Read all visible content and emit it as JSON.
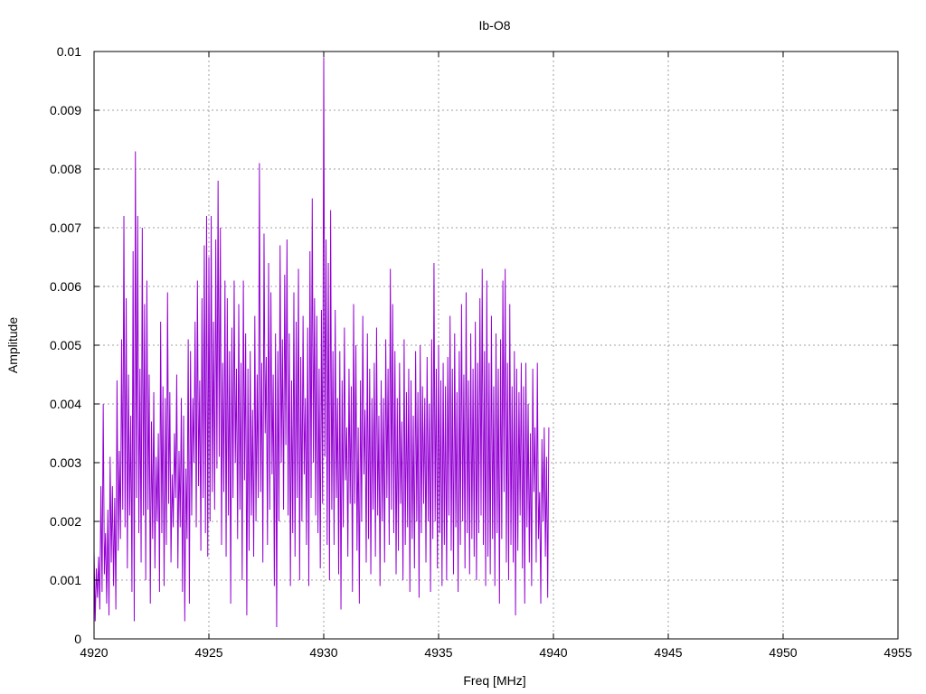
{
  "chart_data": {
    "type": "line",
    "title": "Ib-O8",
    "xlabel": "Freq [MHz]",
    "ylabel": "Amplitude",
    "xlim": [
      4920,
      4955
    ],
    "ylim": [
      0,
      0.01
    ],
    "x_ticks": [
      "4920",
      "4925",
      "4930",
      "4935",
      "4940",
      "4945",
      "4950",
      "4955"
    ],
    "y_ticks": [
      "0",
      "0.001",
      "0.002",
      "0.003",
      "0.004",
      "0.005",
      "0.006",
      "0.007",
      "0.008",
      "0.009",
      "0.01"
    ],
    "grid": true,
    "legend": "none",
    "line_color": "#9400d3",
    "series": [
      {
        "x_start": 4920,
        "x_step": 0.05,
        "values": [
          0.0015,
          0.0003,
          0.0012,
          0.0007,
          0.0014,
          0.0005,
          0.0026,
          0.0008,
          0.004,
          0.0011,
          0.0018,
          0.0006,
          0.0022,
          0.0004,
          0.0031,
          0.0013,
          0.0026,
          0.0009,
          0.0024,
          0.0005,
          0.0044,
          0.0015,
          0.0032,
          0.0017,
          0.0051,
          0.0022,
          0.0072,
          0.0019,
          0.0058,
          0.0012,
          0.0045,
          0.0021,
          0.0038,
          0.0008,
          0.0066,
          0.0003,
          0.0083,
          0.0024,
          0.0072,
          0.0018,
          0.0046,
          0.0013,
          0.007,
          0.0021,
          0.0057,
          0.001,
          0.0061,
          0.0022,
          0.0045,
          0.0006,
          0.0037,
          0.0017,
          0.0042,
          0.0012,
          0.0031,
          0.002,
          0.0035,
          0.0008,
          0.0054,
          0.0018,
          0.0043,
          0.0009,
          0.0041,
          0.0016,
          0.0059,
          0.0023,
          0.0042,
          0.0013,
          0.0028,
          0.0019,
          0.0035,
          0.0024,
          0.0045,
          0.0012,
          0.0032,
          0.0019,
          0.0041,
          0.0008,
          0.0038,
          0.0003,
          0.0029,
          0.0017,
          0.0051,
          0.0006,
          0.0049,
          0.0021,
          0.0041,
          0.003,
          0.0054,
          0.0019,
          0.0061,
          0.0026,
          0.0044,
          0.0015,
          0.0058,
          0.0024,
          0.0067,
          0.0018,
          0.0072,
          0.0014,
          0.0065,
          0.002,
          0.0072,
          0.0025,
          0.0054,
          0.0022,
          0.0068,
          0.0029,
          0.0078,
          0.0031,
          0.007,
          0.0016,
          0.0047,
          0.0025,
          0.0061,
          0.0014,
          0.0058,
          0.0021,
          0.0049,
          0.0006,
          0.0053,
          0.0024,
          0.0061,
          0.003,
          0.0046,
          0.0017,
          0.0057,
          0.0022,
          0.0047,
          0.001,
          0.0061,
          0.0027,
          0.0052,
          0.0004,
          0.0046,
          0.0015,
          0.0049,
          0.0021,
          0.0039,
          0.0014,
          0.0055,
          0.002,
          0.0045,
          0.0024,
          0.0081,
          0.0025,
          0.0047,
          0.0013,
          0.0069,
          0.0035,
          0.0048,
          0.0016,
          0.0064,
          0.0022,
          0.0059,
          0.0028,
          0.0045,
          0.0009,
          0.0052,
          0.0002,
          0.0049,
          0.002,
          0.0067,
          0.003,
          0.0051,
          0.0022,
          0.0062,
          0.0033,
          0.0068,
          0.0021,
          0.0052,
          0.0009,
          0.0044,
          0.0018,
          0.0059,
          0.0014,
          0.0054,
          0.0024,
          0.0063,
          0.001,
          0.0048,
          0.002,
          0.0055,
          0.0028,
          0.0041,
          0.0016,
          0.0053,
          0.0009,
          0.0066,
          0.0024,
          0.0075,
          0.003,
          0.0058,
          0.0021,
          0.0055,
          0.0018,
          0.0046,
          0.0012,
          0.0056,
          0.0023,
          0.0099,
          0.0031,
          0.0068,
          0.0016,
          0.0064,
          0.001,
          0.0073,
          0.0022,
          0.0049,
          0.0016,
          0.0056,
          0.0024,
          0.0041,
          0.0011,
          0.0049,
          0.0005,
          0.0044,
          0.0019,
          0.0053,
          0.0027,
          0.0036,
          0.0014,
          0.0046,
          0.0023,
          0.0043,
          0.0008,
          0.0057,
          0.0023,
          0.005,
          0.0015,
          0.0036,
          0.0006,
          0.0044,
          0.002,
          0.0055,
          0.0028,
          0.0039,
          0.0013,
          0.0052,
          0.0017,
          0.0046,
          0.0011,
          0.0041,
          0.0022,
          0.0047,
          0.0014,
          0.0053,
          0.0021,
          0.0038,
          0.0009,
          0.0044,
          0.002,
          0.0041,
          0.0013,
          0.0051,
          0.0024,
          0.0046,
          0.0016,
          0.0063,
          0.0022,
          0.0057,
          0.0018,
          0.0049,
          0.0011,
          0.0041,
          0.0015,
          0.0047,
          0.0023,
          0.0037,
          0.001,
          0.0051,
          0.0016,
          0.0042,
          0.0019,
          0.0046,
          0.0008,
          0.0044,
          0.0017,
          0.0038,
          0.0012,
          0.0049,
          0.002,
          0.0042,
          0.0007,
          0.005,
          0.0018,
          0.0043,
          0.0023,
          0.0041,
          0.0013,
          0.0048,
          0.002,
          0.004,
          0.0008,
          0.0051,
          0.0017,
          0.0064,
          0.002,
          0.0046,
          0.0012,
          0.005,
          0.0018,
          0.0044,
          0.0009,
          0.0047,
          0.0016,
          0.0043,
          0.001,
          0.0048,
          0.0021,
          0.0055,
          0.0015,
          0.0046,
          0.0011,
          0.0052,
          0.0019,
          0.0042,
          0.0008,
          0.0049,
          0.0016,
          0.0057,
          0.002,
          0.0045,
          0.0012,
          0.0059,
          0.0018,
          0.0044,
          0.0011,
          0.0052,
          0.0017,
          0.0046,
          0.0014,
          0.0054,
          0.001,
          0.0047,
          0.0018,
          0.0058,
          0.0021,
          0.0063,
          0.0016,
          0.0049,
          0.0009,
          0.0061,
          0.0014,
          0.0047,
          0.0011,
          0.0055,
          0.0017,
          0.0043,
          0.0009,
          0.0052,
          0.0018,
          0.0046,
          0.0006,
          0.0051,
          0.0017,
          0.0061,
          0.0025,
          0.0063,
          0.0013,
          0.0047,
          0.001,
          0.0057,
          0.0016,
          0.0043,
          0.0013,
          0.0049,
          0.0004,
          0.0046,
          0.0015,
          0.0042,
          0.0021,
          0.0047,
          0.0012,
          0.0043,
          0.0006,
          0.0047,
          0.0019,
          0.004,
          0.0013,
          0.0035,
          0.0009,
          0.0046,
          0.0025,
          0.0036,
          0.0013,
          0.0047,
          0.0017,
          0.0025,
          0.0006,
          0.0034,
          0.002,
          0.0036,
          0.0014,
          0.0031,
          0.0007,
          0.0036
        ]
      }
    ]
  }
}
